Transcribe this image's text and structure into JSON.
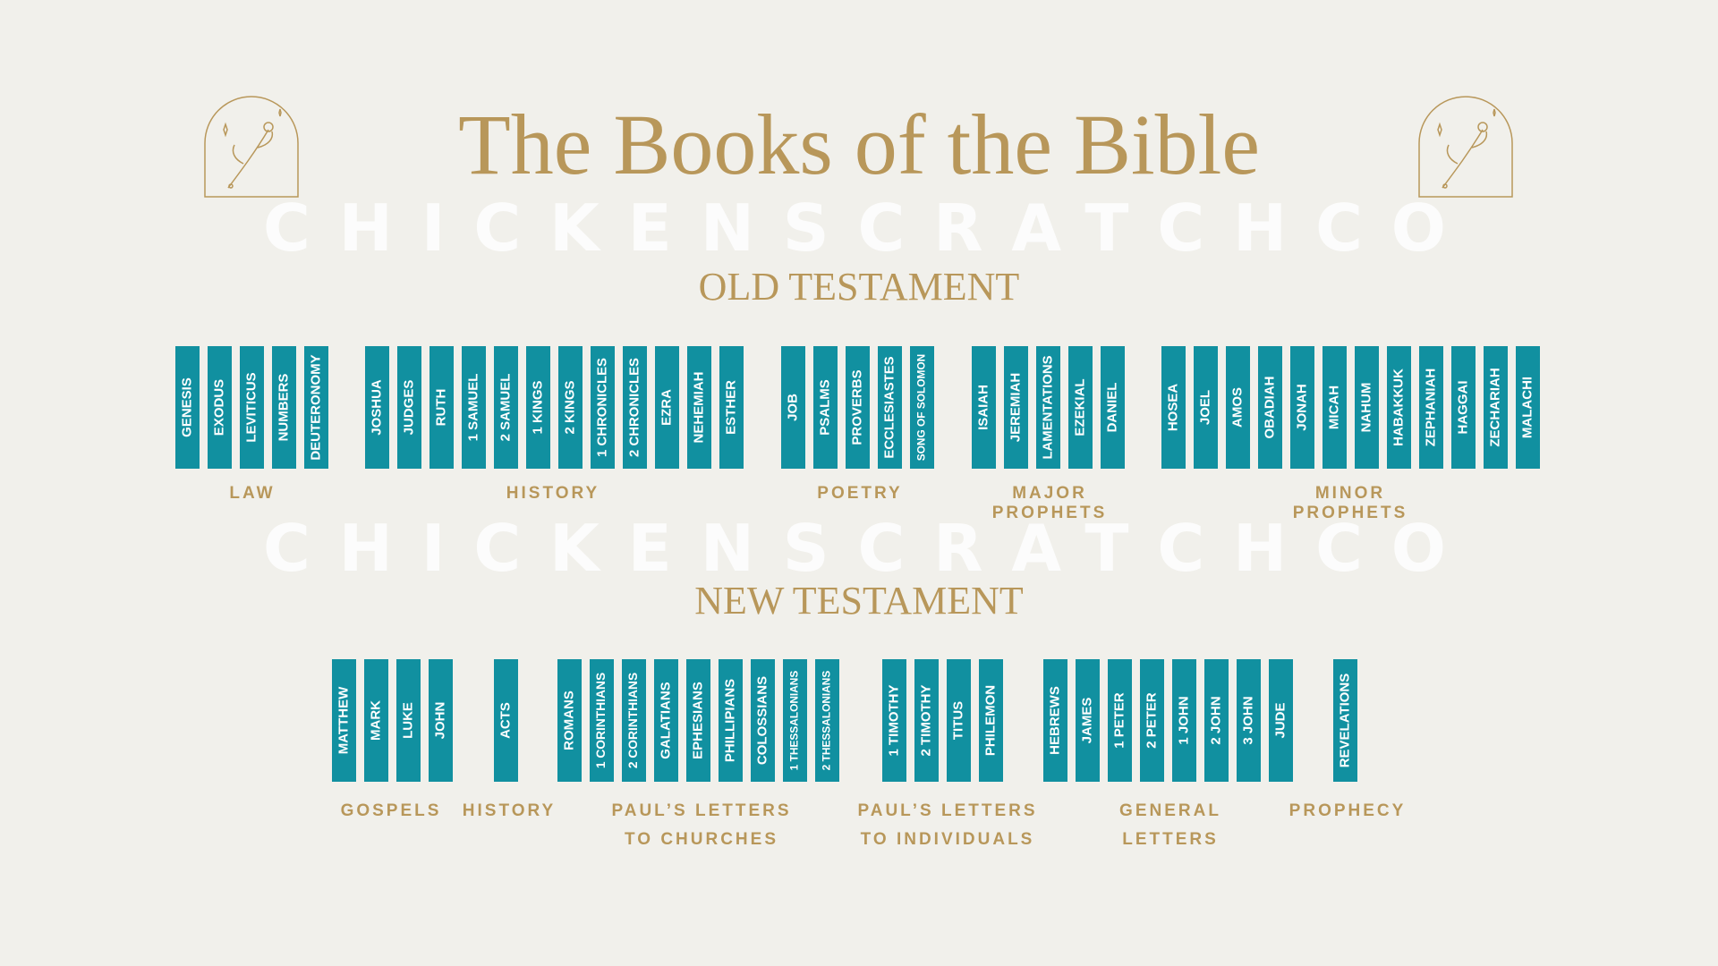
{
  "title": "The Books of the Bible",
  "watermarks": [
    "CHICKENSCRATCHCO",
    "CHICKENSCRATCHCO"
  ],
  "old_testament": {
    "heading": "OLD TESTAMENT",
    "groups": [
      {
        "books": [
          "GENESIS",
          "EXODUS",
          "LEVITICUS",
          "NUMBERS",
          "DEUTERONOMY"
        ],
        "label": [
          "LAW"
        ]
      },
      {
        "books": [
          "JOSHUA",
          "JUDGES",
          "RUTH",
          "1 SAMUEL",
          "2 SAMUEL",
          "1 KINGS",
          "2 KINGS",
          "1 CHRONICLES",
          "2 CHRONICLES",
          "EZRA",
          "NEHEMIAH",
          "ESTHER"
        ],
        "label": [
          "HISTORY"
        ]
      },
      {
        "books": [
          "JOB",
          "PSALMS",
          "PROVERBS",
          "ECCLESIASTES",
          "SONG OF SOLOMON"
        ],
        "label": [
          "POETRY"
        ]
      },
      {
        "books": [
          "ISAIAH",
          "JEREMIAH",
          "LAMENTATIONS",
          "EZEKIAL",
          "DANIEL"
        ],
        "label": [
          "MAJOR",
          "PROPHETS"
        ]
      },
      {
        "books": [
          "HOSEA",
          "JOEL",
          "AMOS",
          "OBADIAH",
          "JONAH",
          "MICAH",
          "NAHUM",
          "HABAKKUK",
          "ZEPHANIAH",
          "HAGGAI",
          "ZECHARIAH",
          "MALACHI"
        ],
        "label": [
          "MINOR",
          "PROPHETS"
        ]
      }
    ]
  },
  "new_testament": {
    "heading": "NEW TESTAMENT",
    "groups": [
      {
        "books": [
          "MATTHEW",
          "MARK",
          "LUKE",
          "JOHN"
        ],
        "label": [
          "GOSPELS"
        ]
      },
      {
        "books": [
          "ACTS"
        ],
        "label": [
          "HISTORY"
        ]
      },
      {
        "books": [
          "ROMANS",
          "1 CORINTHIANS",
          "2 CORINTHIANS",
          "GALATIANS",
          "EPHESIANS",
          "PHILLIPIANS",
          "COLOSSIANS",
          "1 THESSALONIANS",
          "2 THESSALONIANS"
        ],
        "label": [
          "PAUL’S LETTERS",
          "TO CHURCHES"
        ]
      },
      {
        "books": [
          "1 TIMOTHY",
          "2 TIMOTHY",
          "TITUS",
          "PHILEMON"
        ],
        "label": [
          "PAUL’S LETTERS",
          "TO INDIVIDUALS"
        ]
      },
      {
        "books": [
          "HEBREWS",
          "JAMES",
          "1 PETER",
          "2 PETER",
          "1 JOHN",
          "2 JOHN",
          "3 JOHN",
          "JUDE"
        ],
        "label": [
          "GENERAL",
          "LETTERS"
        ]
      },
      {
        "books": [
          "REVELATIONS"
        ],
        "label": [
          "PROPHECY"
        ]
      }
    ]
  }
}
